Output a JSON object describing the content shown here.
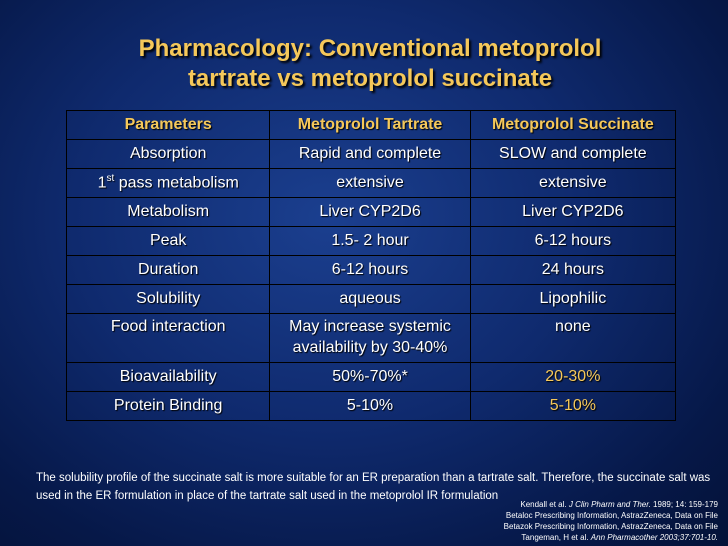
{
  "title": {
    "line1": "Pharmacology: Conventional metoprolol",
    "line2": "tartrate vs metoprolol succinate"
  },
  "table": {
    "headers": [
      "Parameters",
      "Metoprolol Tartrate",
      "Metoprolol  Succinate"
    ],
    "rows": [
      [
        "Absorption",
        "Rapid and complete",
        "SLOW and complete"
      ],
      [
        "pass metabolism",
        "extensive",
        "extensive"
      ],
      [
        "Metabolism",
        "Liver CYP2D6",
        "Liver CYP2D6"
      ],
      [
        "Peak",
        "1.5- 2 hour",
        "6-12 hours"
      ],
      [
        "Duration",
        "6-12 hours",
        "24 hours"
      ],
      [
        "Solubility",
        "aqueous",
        "Lipophilic"
      ],
      [
        "Food interaction",
        "May increase systemic availability by 30-40%",
        "none"
      ],
      [
        "Bioavailability",
        "50%-70%*",
        "20-30%"
      ],
      [
        "Protein Binding",
        "5-10%",
        "5-10%"
      ]
    ],
    "first_pass_prefix": "1",
    "first_pass_sup": "st"
  },
  "footnote": "The solubility profile of the succinate salt is more suitable for an ER preparation than a tartrate salt. Therefore, the succinate salt was used in the ER formulation in place of the tartrate salt used in the metoprolol IR formulation",
  "references": [
    {
      "prefix": "Kendall et al. ",
      "italic": "J Clin Pharm and Ther.",
      "suffix": " 1989; 14: 159-179"
    },
    {
      "prefix": "Betaloc Prescribing Information, AstrazZeneca, Data on File",
      "italic": "",
      "suffix": ""
    },
    {
      "prefix": "Betazok Prescribing Information, AstrazZeneca, Data on File",
      "italic": "",
      "suffix": ""
    },
    {
      "prefix": "Tangeman, H et al. ",
      "italic": "Ann Pharmacother 2003;37:701-10.",
      "suffix": ""
    }
  ]
}
